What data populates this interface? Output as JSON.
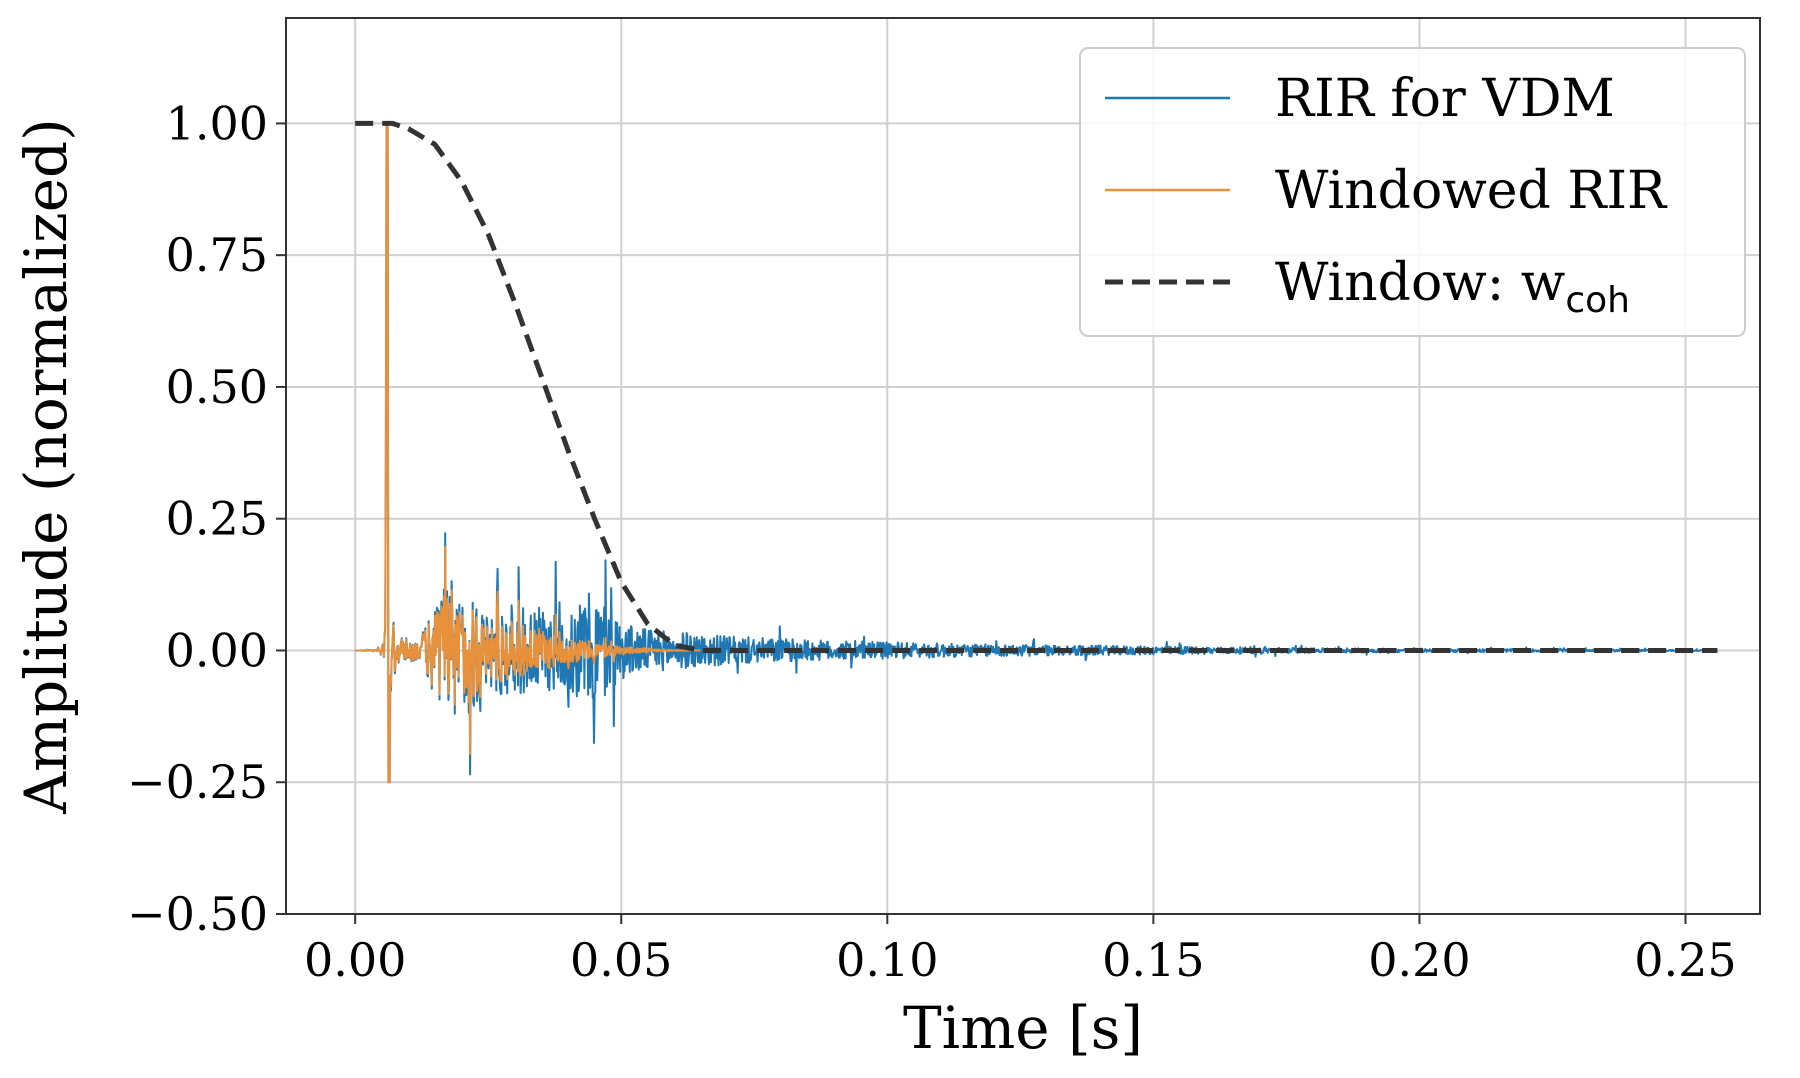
{
  "chart_data": {
    "type": "line",
    "title": "",
    "xlabel": "Time [s]",
    "ylabel": "Amplitude (normalized)",
    "xlim": [
      -0.013,
      0.264
    ],
    "ylim": [
      -0.5,
      1.2
    ],
    "xticks": [
      0.0,
      0.05,
      0.1,
      0.15,
      0.2,
      0.25
    ],
    "xtick_labels": [
      "0.00",
      "0.05",
      "0.10",
      "0.15",
      "0.20",
      "0.25"
    ],
    "yticks": [
      -0.5,
      -0.25,
      0.0,
      0.25,
      0.5,
      0.75,
      1.0
    ],
    "ytick_labels": [
      "−0.50",
      "−0.25",
      "0.00",
      "0.25",
      "0.50",
      "0.75",
      "1.00"
    ],
    "grid": true,
    "legend_position": "top-right",
    "colors": {
      "rir": "#1f77b4",
      "windowed": "#e8913a",
      "window": "#333333"
    },
    "series": [
      {
        "name": "RIR for VDM",
        "style": "solid",
        "x": [
          0.0,
          0.004,
          0.0055,
          0.006,
          0.0065,
          0.008,
          0.012,
          0.014,
          0.016,
          0.018,
          0.02,
          0.022,
          0.024,
          0.027,
          0.03,
          0.035,
          0.04,
          0.045,
          0.05,
          0.055,
          0.06,
          0.07,
          0.08,
          0.09,
          0.1,
          0.12,
          0.14,
          0.16,
          0.18,
          0.2,
          0.22,
          0.24,
          0.256
        ],
        "envelope": [
          0.0,
          0.003,
          0.05,
          1.0,
          0.25,
          0.06,
          0.04,
          0.15,
          0.26,
          0.3,
          0.22,
          0.29,
          0.16,
          0.2,
          0.19,
          0.18,
          0.17,
          0.26,
          0.12,
          0.09,
          0.08,
          0.06,
          0.05,
          0.04,
          0.035,
          0.025,
          0.02,
          0.015,
          0.01,
          0.008,
          0.006,
          0.004,
          0.002
        ]
      },
      {
        "name": "Windowed RIR",
        "style": "solid",
        "x": [
          0.0,
          0.004,
          0.0055,
          0.006,
          0.0065,
          0.008,
          0.012,
          0.014,
          0.016,
          0.018,
          0.02,
          0.022,
          0.024,
          0.027,
          0.03,
          0.035,
          0.04,
          0.045,
          0.05,
          0.055,
          0.06,
          0.065
        ],
        "envelope": [
          0.0,
          0.003,
          0.05,
          1.0,
          0.25,
          0.06,
          0.04,
          0.15,
          0.26,
          0.29,
          0.2,
          0.27,
          0.13,
          0.16,
          0.13,
          0.1,
          0.06,
          0.04,
          0.02,
          0.01,
          0.003,
          0.0
        ]
      },
      {
        "name": "Window: w",
        "name_subscript": "coh",
        "style": "dashed",
        "x": [
          0.0,
          0.005,
          0.007,
          0.01,
          0.015,
          0.02,
          0.025,
          0.03,
          0.035,
          0.04,
          0.045,
          0.05,
          0.055,
          0.06,
          0.065,
          0.07,
          0.1,
          0.15,
          0.2,
          0.256
        ],
        "y": [
          1.0,
          1.0,
          1.0,
          0.99,
          0.96,
          0.89,
          0.79,
          0.66,
          0.52,
          0.38,
          0.25,
          0.13,
          0.05,
          0.01,
          0.0,
          0.0,
          0.0,
          0.0,
          0.0,
          0.0
        ]
      }
    ]
  }
}
